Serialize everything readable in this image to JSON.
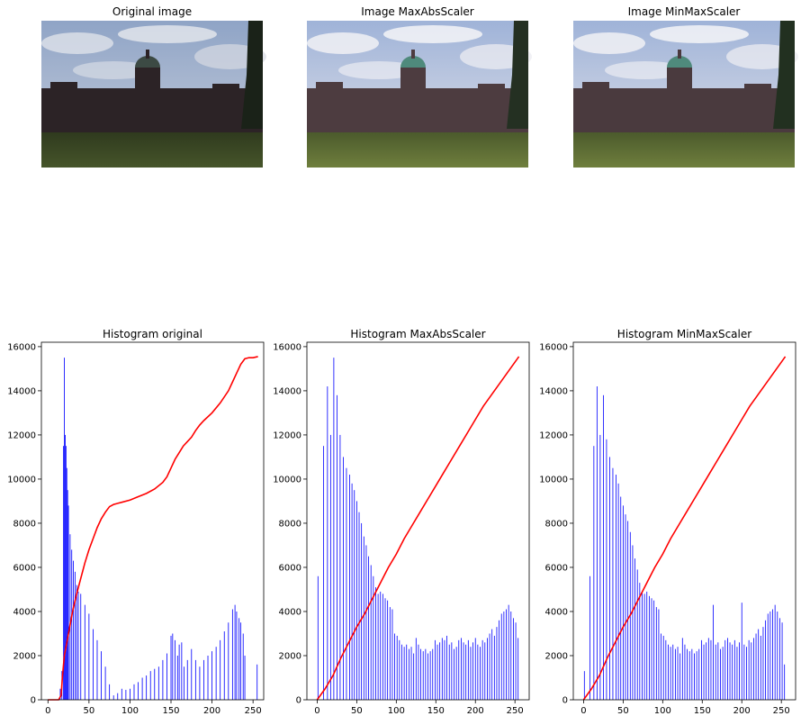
{
  "images": [
    {
      "title": "Original image",
      "variant": "original"
    },
    {
      "title": "Image MaxAbsScaler",
      "variant": "maxabs"
    },
    {
      "title": "Image MinMaxScaler",
      "variant": "minmax"
    }
  ],
  "colors": {
    "histogram_bars": "#0000ff",
    "cdf_line": "#ff0000",
    "axes": "#000000"
  },
  "chart_data": [
    {
      "type": "bar",
      "title": "Histogram original",
      "xlabel": "",
      "ylabel": "",
      "xlim": [
        -8,
        263
      ],
      "ylim": [
        0,
        16200
      ],
      "xticks": [
        0,
        50,
        100,
        150,
        200,
        250
      ],
      "yticks": [
        0,
        2000,
        4000,
        6000,
        8000,
        10000,
        12000,
        14000,
        16000
      ],
      "grid": false,
      "series": [
        {
          "kind": "histogram",
          "color": "#0000ff",
          "x": [
            13,
            15,
            17,
            19,
            20,
            21,
            22,
            23,
            24,
            25,
            27,
            29,
            31,
            33,
            35,
            37,
            40,
            45,
            50,
            55,
            60,
            65,
            70,
            75,
            80,
            85,
            90,
            95,
            100,
            105,
            110,
            115,
            120,
            125,
            130,
            135,
            140,
            145,
            150,
            152,
            155,
            158,
            160,
            163,
            166,
            170,
            175,
            180,
            185,
            190,
            195,
            200,
            205,
            210,
            215,
            220,
            225,
            228,
            230,
            233,
            235,
            238,
            240,
            255
          ],
          "values": [
            0,
            500,
            1300,
            11500,
            15500,
            12000,
            11500,
            10500,
            9500,
            8800,
            7500,
            6800,
            6300,
            5800,
            5200,
            4900,
            4800,
            4300,
            3900,
            3200,
            2700,
            2200,
            1500,
            700,
            200,
            300,
            500,
            450,
            500,
            700,
            800,
            1000,
            1100,
            1300,
            1400,
            1500,
            1800,
            2100,
            2900,
            3000,
            2700,
            2000,
            2500,
            2600,
            1500,
            1800,
            2300,
            1800,
            1500,
            1800,
            2000,
            2200,
            2400,
            2700,
            3100,
            3500,
            4100,
            4300,
            4000,
            3700,
            3500,
            3000,
            2000,
            1600
          ]
        },
        {
          "kind": "cdf",
          "color": "#ff0000",
          "x": [
            0,
            13,
            16,
            18,
            20,
            25,
            30,
            35,
            40,
            45,
            50,
            55,
            60,
            65,
            70,
            75,
            80,
            85,
            90,
            100,
            110,
            120,
            130,
            140,
            145,
            150,
            155,
            160,
            165,
            170,
            175,
            180,
            185,
            190,
            200,
            210,
            220,
            225,
            230,
            235,
            240,
            245,
            250,
            256
          ],
          "values": [
            0,
            0,
            200,
            1200,
            2000,
            3000,
            4000,
            4800,
            5500,
            6200,
            6800,
            7300,
            7800,
            8200,
            8500,
            8750,
            8850,
            8900,
            8950,
            9050,
            9200,
            9350,
            9550,
            9850,
            10100,
            10500,
            10900,
            11200,
            11500,
            11700,
            11900,
            12200,
            12450,
            12650,
            13000,
            13450,
            14000,
            14400,
            14800,
            15200,
            15450,
            15500,
            15500,
            15550
          ]
        }
      ]
    },
    {
      "type": "bar",
      "title": "Histogram MaxAbsScaler",
      "xlabel": "",
      "ylabel": "",
      "xlim": [
        -13,
        268
      ],
      "ylim": [
        0,
        16200
      ],
      "xticks": [
        0,
        50,
        100,
        150,
        200,
        250
      ],
      "yticks": [
        0,
        2000,
        4000,
        6000,
        8000,
        10000,
        12000,
        14000,
        16000
      ],
      "grid": false,
      "series": [
        {
          "kind": "histogram",
          "color": "#0000ff",
          "x": [
            1,
            8,
            13,
            15,
            17,
            21,
            25,
            29,
            33,
            37,
            41,
            44,
            47,
            50,
            53,
            56,
            59,
            62,
            65,
            68,
            71,
            74,
            77,
            80,
            83,
            86,
            89,
            92,
            95,
            98,
            101,
            104,
            107,
            110,
            113,
            116,
            119,
            122,
            125,
            128,
            131,
            134,
            137,
            140,
            143,
            146,
            149,
            152,
            155,
            158,
            161,
            164,
            167,
            170,
            173,
            176,
            179,
            182,
            185,
            188,
            191,
            194,
            197,
            200,
            203,
            206,
            209,
            212,
            215,
            218,
            221,
            224,
            227,
            230,
            233,
            236,
            239,
            242,
            245,
            248,
            251,
            254
          ],
          "values": [
            5600,
            11500,
            14200,
            0,
            12000,
            15500,
            13800,
            12000,
            11000,
            10500,
            10200,
            9800,
            9500,
            9000,
            8500,
            8000,
            7400,
            7000,
            6500,
            6100,
            5600,
            5100,
            4800,
            4900,
            4800,
            4600,
            4500,
            4200,
            4100,
            3000,
            2900,
            2700,
            2500,
            2400,
            2500,
            2300,
            2400,
            2100,
            2800,
            2500,
            2300,
            2200,
            2300,
            2100,
            2200,
            2300,
            2700,
            2500,
            2600,
            2800,
            2700,
            2900,
            2500,
            2600,
            2300,
            2400,
            2700,
            2800,
            2600,
            2500,
            2700,
            2400,
            2600,
            2800,
            2500,
            2400,
            2700,
            2600,
            2800,
            3000,
            3200,
            2900,
            3300,
            3600,
            3900,
            4000,
            4100,
            4300,
            4000,
            3700,
            3500,
            2800
          ]
        },
        {
          "kind": "cdf",
          "color": "#ff0000",
          "x": [
            0,
            10,
            20,
            30,
            40,
            50,
            60,
            70,
            80,
            90,
            100,
            110,
            120,
            130,
            140,
            150,
            160,
            170,
            180,
            190,
            200,
            210,
            220,
            230,
            240,
            250,
            255
          ],
          "values": [
            0,
            500,
            1100,
            1900,
            2600,
            3300,
            3900,
            4600,
            5300,
            6000,
            6600,
            7300,
            7900,
            8500,
            9100,
            9700,
            10300,
            10900,
            11500,
            12100,
            12700,
            13300,
            13800,
            14300,
            14800,
            15300,
            15550
          ]
        }
      ]
    },
    {
      "type": "bar",
      "title": "Histogram MinMaxScaler",
      "xlabel": "",
      "ylabel": "",
      "xlim": [
        -13,
        268
      ],
      "ylim": [
        0,
        16200
      ],
      "xticks": [
        0,
        50,
        100,
        150,
        200,
        250
      ],
      "yticks": [
        0,
        2000,
        4000,
        6000,
        8000,
        10000,
        12000,
        14000,
        16000
      ],
      "grid": false,
      "series": [
        {
          "kind": "histogram",
          "color": "#0000ff",
          "x": [
            1,
            8,
            13,
            17,
            21,
            25,
            29,
            33,
            37,
            41,
            44,
            47,
            50,
            53,
            56,
            59,
            62,
            65,
            68,
            71,
            74,
            77,
            80,
            83,
            86,
            89,
            92,
            95,
            98,
            101,
            104,
            107,
            110,
            113,
            116,
            119,
            122,
            125,
            128,
            131,
            134,
            137,
            140,
            143,
            146,
            149,
            152,
            155,
            158,
            161,
            164,
            167,
            170,
            173,
            176,
            179,
            182,
            185,
            188,
            191,
            194,
            197,
            200,
            203,
            206,
            209,
            212,
            215,
            218,
            221,
            224,
            227,
            230,
            233,
            236,
            239,
            242,
            245,
            248,
            251,
            254
          ],
          "values": [
            1300,
            5600,
            11500,
            14200,
            12000,
            13800,
            11800,
            11000,
            10500,
            10200,
            9800,
            9200,
            8800,
            8400,
            8100,
            7600,
            7000,
            6400,
            5900,
            5300,
            4900,
            4800,
            4900,
            4700,
            4600,
            4500,
            4200,
            4100,
            3000,
            2900,
            2700,
            2500,
            2400,
            2500,
            2300,
            2400,
            2100,
            2800,
            2500,
            2300,
            2200,
            2300,
            2100,
            2200,
            2300,
            2700,
            2500,
            2600,
            2800,
            2700,
            4300,
            2500,
            2600,
            2300,
            2400,
            2700,
            2800,
            2600,
            2500,
            2700,
            2400,
            2600,
            4400,
            2500,
            2400,
            2700,
            2600,
            2800,
            3000,
            3200,
            2900,
            3300,
            3600,
            3900,
            4000,
            4100,
            4300,
            4000,
            3700,
            3500,
            1600
          ]
        },
        {
          "kind": "cdf",
          "color": "#ff0000",
          "x": [
            0,
            10,
            20,
            30,
            40,
            50,
            60,
            70,
            80,
            90,
            100,
            110,
            120,
            130,
            140,
            150,
            160,
            170,
            180,
            190,
            200,
            210,
            220,
            230,
            240,
            250,
            255
          ],
          "values": [
            0,
            500,
            1100,
            1900,
            2600,
            3300,
            3900,
            4600,
            5300,
            6000,
            6600,
            7300,
            7900,
            8500,
            9100,
            9700,
            10300,
            10900,
            11500,
            12100,
            12700,
            13300,
            13800,
            14300,
            14800,
            15300,
            15550
          ]
        }
      ]
    }
  ]
}
